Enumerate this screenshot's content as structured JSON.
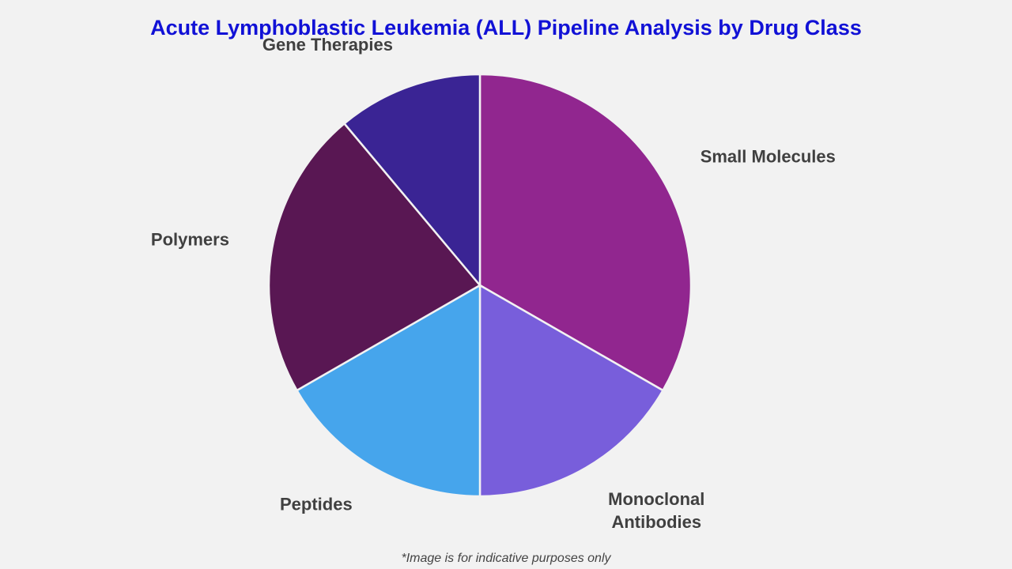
{
  "chart_data": {
    "type": "pie",
    "title": "Acute Lymphoblastic Leukemia (ALL) Pipeline Analysis by Drug Class",
    "categories": [
      "Small Molecules",
      "Monoclonal Antibodies",
      "Peptides",
      "Polymers",
      "Gene Therapies"
    ],
    "values": [
      33.3,
      16.7,
      16.7,
      22.2,
      11.1
    ],
    "colors": [
      "#91268f",
      "#785edb",
      "#46a5ec",
      "#591753",
      "#3a2494"
    ],
    "footnote": "*Image is for indicative purposes only"
  }
}
